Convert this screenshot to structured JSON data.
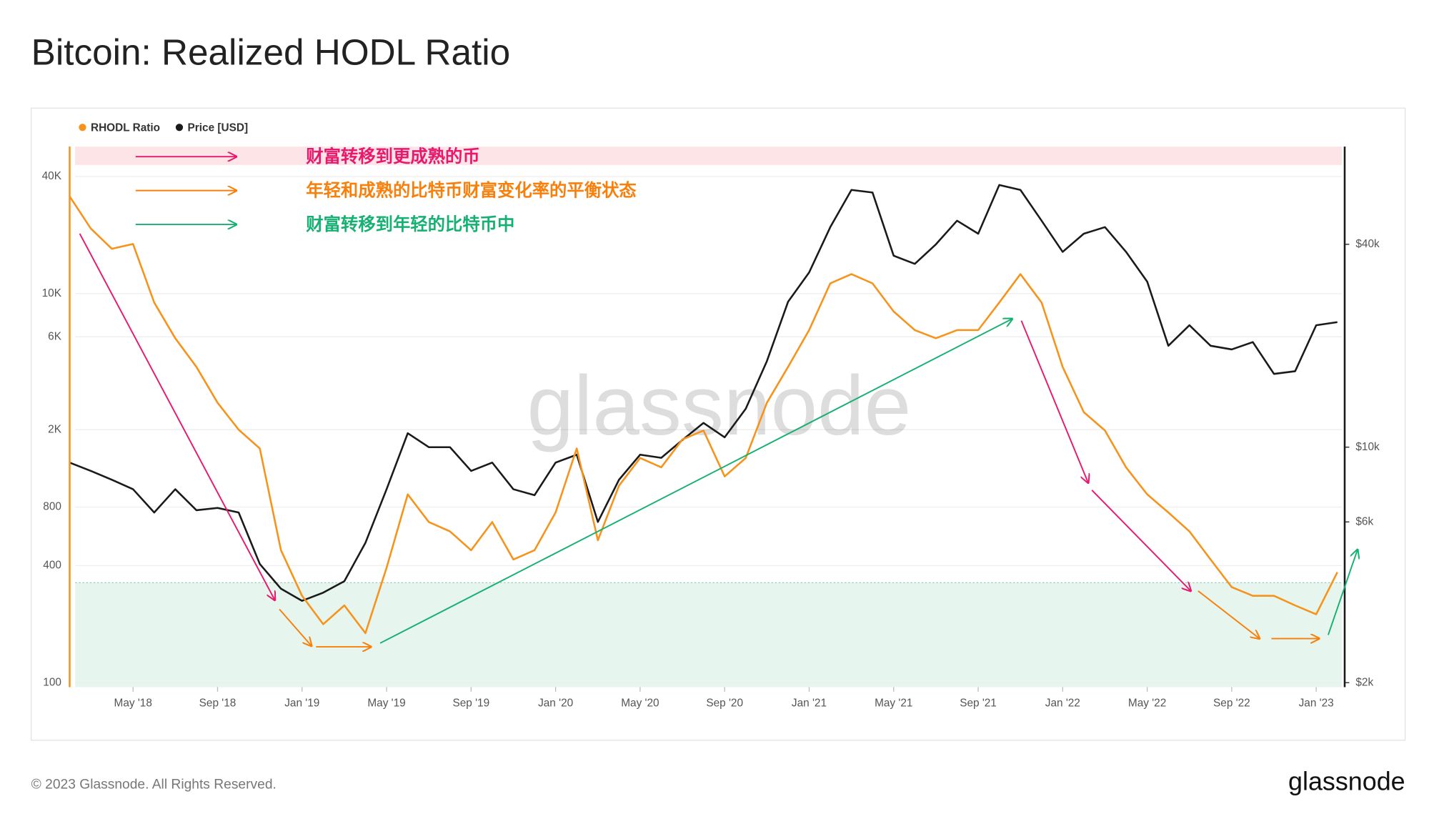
{
  "chart_data": {
    "type": "line",
    "title": "Bitcoin: Realized HODL Ratio",
    "x": [
      "2018-02",
      "2018-03",
      "2018-04",
      "2018-05",
      "2018-06",
      "2018-07",
      "2018-08",
      "2018-09",
      "2018-10",
      "2018-11",
      "2018-12",
      "2019-01",
      "2019-02",
      "2019-03",
      "2019-04",
      "2019-05",
      "2019-06",
      "2019-07",
      "2019-08",
      "2019-09",
      "2019-10",
      "2019-11",
      "2019-12",
      "2020-01",
      "2020-02",
      "2020-03",
      "2020-04",
      "2020-05",
      "2020-06",
      "2020-07",
      "2020-08",
      "2020-09",
      "2020-10",
      "2020-11",
      "2020-12",
      "2021-01",
      "2021-02",
      "2021-03",
      "2021-04",
      "2021-05",
      "2021-06",
      "2021-07",
      "2021-08",
      "2021-09",
      "2021-10",
      "2021-11",
      "2021-12",
      "2022-01",
      "2022-02",
      "2022-03",
      "2022-04",
      "2022-05",
      "2022-06",
      "2022-07",
      "2022-08",
      "2022-09",
      "2022-10",
      "2022-11",
      "2022-12",
      "2023-01",
      "2023-02"
    ],
    "xlim": [
      "2018-02",
      "2023-02"
    ],
    "xticks": [
      {
        "value": "2018-05",
        "label": "May '18"
      },
      {
        "value": "2018-09",
        "label": "Sep '18"
      },
      {
        "value": "2019-01",
        "label": "Jan '19"
      },
      {
        "value": "2019-05",
        "label": "May '19"
      },
      {
        "value": "2019-09",
        "label": "Sep '19"
      },
      {
        "value": "2020-01",
        "label": "Jan '20"
      },
      {
        "value": "2020-05",
        "label": "May '20"
      },
      {
        "value": "2020-09",
        "label": "Sep '20"
      },
      {
        "value": "2021-01",
        "label": "Jan '21"
      },
      {
        "value": "2021-05",
        "label": "May '21"
      },
      {
        "value": "2021-09",
        "label": "Sep '21"
      },
      {
        "value": "2022-01",
        "label": "Jan '22"
      },
      {
        "value": "2022-05",
        "label": "May '22"
      },
      {
        "value": "2022-09",
        "label": "Sep '22"
      },
      {
        "value": "2023-01",
        "label": "Jan '23"
      }
    ],
    "log_scale": true,
    "grid": true,
    "ylim": [
      95,
      57000
    ],
    "yticks": [
      100,
      400,
      800,
      {
        "value": 2000,
        "label": "2K"
      },
      {
        "value": 6000,
        "label": "6K"
      },
      {
        "value": 10000,
        "label": "10K"
      },
      {
        "value": 40000,
        "label": "40K"
      }
    ],
    "y2lim": [
      1940,
      78000
    ],
    "y2ticks": [
      {
        "value": 2000,
        "label": "$2k"
      },
      {
        "value": 6000,
        "label": "$6k"
      },
      {
        "value": 10000,
        "label": "$10k"
      },
      {
        "value": 40000,
        "label": "$40k"
      }
    ],
    "series": [
      {
        "name": "RHODL Ratio",
        "color": "#f7931a",
        "axis": "y",
        "values": [
          31600,
          21600,
          17000,
          18000,
          9000,
          5900,
          4200,
          2750,
          2000,
          1600,
          480,
          280,
          200,
          250,
          180,
          390,
          930,
          670,
          600,
          480,
          670,
          430,
          480,
          750,
          1600,
          540,
          1030,
          1430,
          1280,
          1780,
          1980,
          1150,
          1430,
          2750,
          4200,
          6500,
          11300,
          12600,
          11300,
          8100,
          6500,
          5900,
          6500,
          6500,
          9000,
          12600,
          9000,
          4200,
          2460,
          1980,
          1280,
          930,
          750,
          600,
          430,
          310,
          280,
          280,
          250,
          225,
          370
        ]
      },
      {
        "name": "Price [USD]",
        "color": "#1a1a1a",
        "axis": "y2",
        "values": [
          9000,
          8500,
          8000,
          7500,
          6400,
          7500,
          6500,
          6600,
          6400,
          4500,
          3800,
          3500,
          3700,
          4000,
          5200,
          7500,
          11000,
          10000,
          10000,
          8500,
          9000,
          7500,
          7200,
          9000,
          9500,
          6000,
          8000,
          9500,
          9300,
          10500,
          11800,
          10700,
          13000,
          18000,
          27000,
          33000,
          45000,
          58000,
          57000,
          37000,
          35000,
          40000,
          47000,
          43000,
          60000,
          58000,
          47000,
          38000,
          43000,
          45000,
          38000,
          31000,
          20000,
          23000,
          20000,
          19500,
          20500,
          16500,
          16800,
          23000,
          23500
        ]
      }
    ],
    "annotations": [
      "财富转移到更成熟的币",
      "年轻和成熟的比特币财富变化率的平衡状态",
      "财富转移到年轻的比特币中"
    ],
    "watermark": "glassnode",
    "footer": "© 2023 Glassnode. All Rights Reserved.",
    "logo": "glassnode"
  }
}
